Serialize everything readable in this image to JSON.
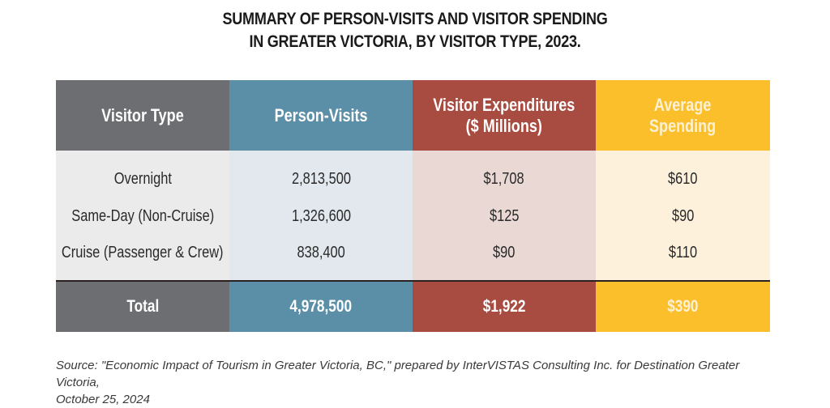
{
  "title": {
    "line1": "SUMMARY OF PERSON-VISITS AND VISITOR SPENDING",
    "line2": "IN GREATER VICTORIA, BY VISITOR TYPE, 2023."
  },
  "colors": {
    "visitor_type": {
      "header": "#6d6e71",
      "body": "#ebebeb"
    },
    "person_visits": {
      "header": "#5b8fa8",
      "body": "#e3e8ee"
    },
    "expenditures": {
      "header": "#a84b40",
      "body": "#e9d8d3"
    },
    "average": {
      "header": "#fbbf2c",
      "body": "#fdf1dc"
    }
  },
  "table": {
    "headers": [
      "Visitor Type",
      "Person-Visits",
      "Visitor Expenditures\n($ Millions)",
      "Average\nSpending"
    ],
    "header_lines": {
      "h2_line1": "Visitor Expenditures",
      "h2_line2": "($ Millions)",
      "h3_line1": "Average",
      "h3_line2": "Spending"
    },
    "rows": [
      {
        "type": "Overnight",
        "visits": "2,813,500",
        "expenditures": "$1,708",
        "average": "$610"
      },
      {
        "type": "Same-Day (Non-Cruise)",
        "visits": "1,326,600",
        "expenditures": "$125",
        "average": "$90"
      },
      {
        "type": "Cruise (Passenger & Crew)",
        "visits": "838,400",
        "expenditures": "$90",
        "average": "$110"
      }
    ],
    "total": {
      "type": "Total",
      "visits": "4,978,500",
      "expenditures": "$1,922",
      "average": "$390"
    }
  },
  "source": {
    "line1": "Source: \"Economic Impact of Tourism in Greater Victoria, BC,\"  prepared by InterVISTAS Consulting Inc. for Destination Greater Victoria,",
    "line2": "October 25, 2024"
  },
  "chart_data": {
    "type": "table",
    "title": "SUMMARY OF PERSON-VISITS AND VISITOR SPENDING IN GREATER VICTORIA, BY VISITOR TYPE, 2023.",
    "columns": [
      "Visitor Type",
      "Person-Visits",
      "Visitor Expenditures ($ Millions)",
      "Average Spending"
    ],
    "rows": [
      [
        "Overnight",
        2813500,
        1708,
        610
      ],
      [
        "Same-Day (Non-Cruise)",
        1326600,
        125,
        90
      ],
      [
        "Cruise (Passenger & Crew)",
        838400,
        90,
        110
      ],
      [
        "Total",
        4978500,
        1922,
        390
      ]
    ],
    "source": "\"Economic Impact of Tourism in Greater Victoria, BC,\" prepared by InterVISTAS Consulting Inc. for Destination Greater Victoria, October 25, 2024"
  }
}
